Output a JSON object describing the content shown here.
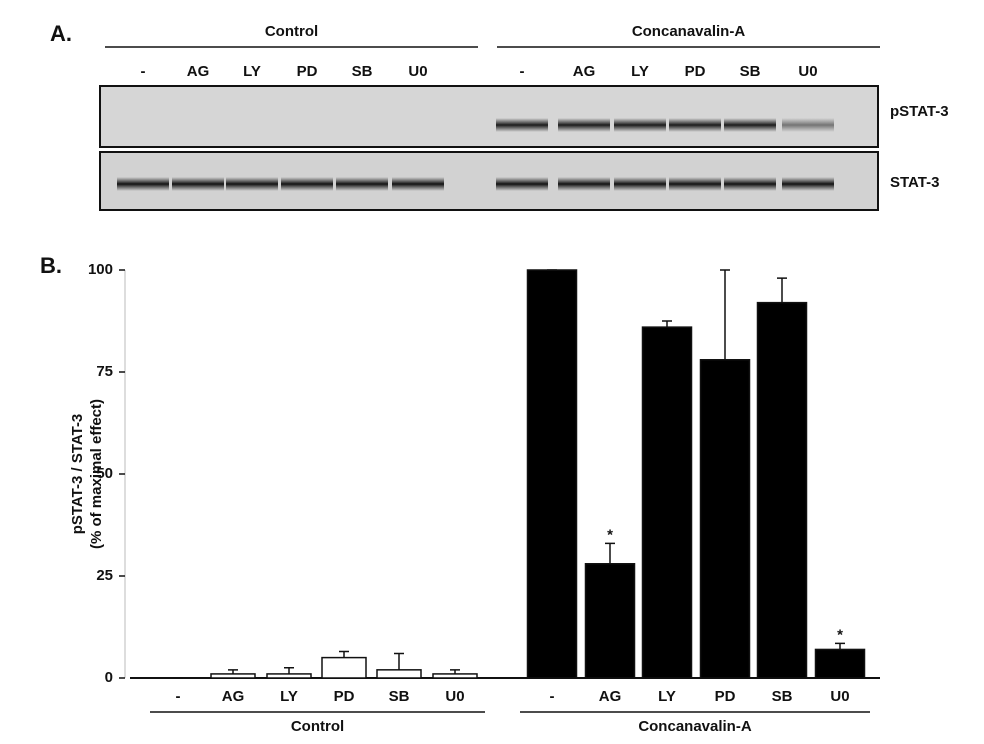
{
  "blot": {
    "panel_label": "A.",
    "groups": [
      {
        "name": "Control",
        "lanes": [
          "-",
          "AG",
          "LY",
          "PD",
          "SB",
          "U0"
        ]
      },
      {
        "name": "Concanavalin-A",
        "lanes": [
          "-",
          "AG",
          "LY",
          "PD",
          "SB",
          "U0"
        ]
      }
    ],
    "bands": [
      "pSTAT-3",
      "STAT-3"
    ]
  },
  "chart_data": {
    "type": "bar",
    "panel_label": "B.",
    "ylabel": [
      "pSTAT-3 / STAT-3",
      "(% of maximal effect)"
    ],
    "ylim": [
      0,
      100
    ],
    "yticks": [
      0,
      25,
      50,
      75,
      100
    ],
    "groups": [
      {
        "name": "Control",
        "color": "#ffffff",
        "categories": [
          "-",
          "AG",
          "LY",
          "PD",
          "SB",
          "U0"
        ],
        "values": [
          0,
          1,
          1,
          5,
          2,
          1
        ],
        "errors": [
          0,
          1,
          1.5,
          1.5,
          4,
          1
        ],
        "significance": [
          null,
          null,
          null,
          null,
          null,
          null
        ]
      },
      {
        "name": "Concanavalin-A",
        "color": "#000000",
        "categories": [
          "-",
          "AG",
          "LY",
          "PD",
          "SB",
          "U0"
        ],
        "values": [
          100,
          28,
          86,
          78,
          92,
          7
        ],
        "errors": [
          0,
          5,
          1.5,
          22,
          6,
          1.5
        ],
        "significance": [
          null,
          "*",
          null,
          null,
          null,
          "*"
        ]
      }
    ]
  }
}
